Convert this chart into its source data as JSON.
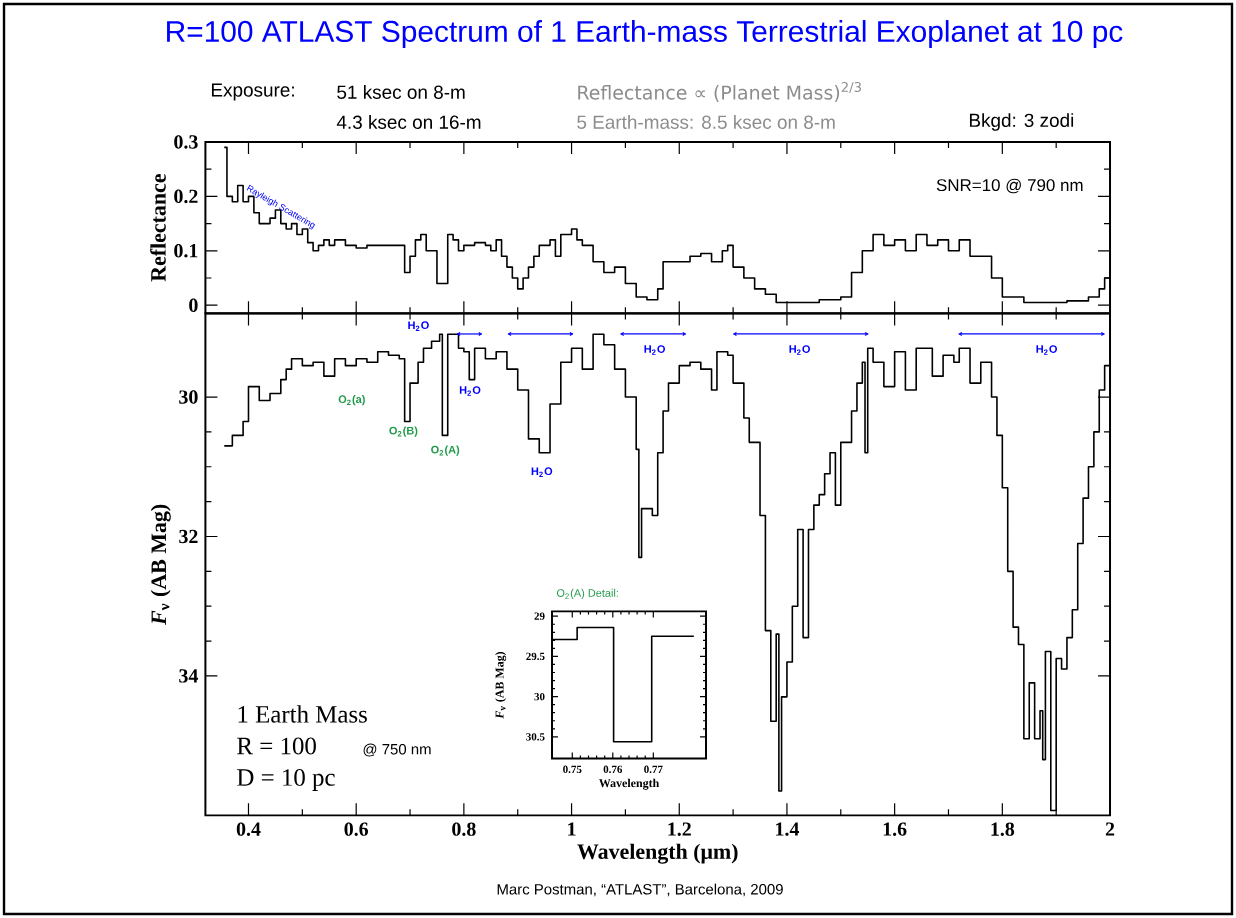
{
  "chart_data": [
    {
      "type": "step",
      "title": "R=100 ATLAST Spectrum of 1 Earth-mass Terrestrial Exoplanet at 10 pc",
      "ylabel": "Reflectance",
      "color": "#000000",
      "tick_labels": "y",
      "xlim": [
        0.32,
        2.0
      ],
      "xticks": [
        0.4,
        0.6,
        0.8,
        1,
        1.2,
        1.4,
        1.6,
        1.8,
        2
      ],
      "ylim": [
        -0.015,
        0.3
      ],
      "yticks": [
        0,
        0.1,
        0.2,
        0.3
      ],
      "x": [
        0.355,
        0.36,
        0.37,
        0.38,
        0.39,
        0.4,
        0.41,
        0.42,
        0.44,
        0.45,
        0.46,
        0.47,
        0.48,
        0.49,
        0.5,
        0.51,
        0.52,
        0.53,
        0.54,
        0.55,
        0.56,
        0.58,
        0.6,
        0.62,
        0.64,
        0.66,
        0.68,
        0.69,
        0.7,
        0.71,
        0.72,
        0.73,
        0.75,
        0.77,
        0.78,
        0.79,
        0.8,
        0.82,
        0.84,
        0.85,
        0.86,
        0.87,
        0.88,
        0.89,
        0.9,
        0.91,
        0.92,
        0.93,
        0.94,
        0.96,
        0.97,
        0.98,
        1.0,
        1.01,
        1.02,
        1.04,
        1.06,
        1.08,
        1.1,
        1.12,
        1.14,
        1.16,
        1.17,
        1.2,
        1.22,
        1.24,
        1.26,
        1.28,
        1.29,
        1.3,
        1.32,
        1.34,
        1.36,
        1.38,
        1.4,
        1.43,
        1.46,
        1.5,
        1.52,
        1.54,
        1.56,
        1.58,
        1.6,
        1.62,
        1.64,
        1.66,
        1.68,
        1.7,
        1.72,
        1.74,
        1.76,
        1.78,
        1.8,
        1.84,
        1.88,
        1.92,
        1.96,
        1.98,
        1.99,
        2.0
      ],
      "values": [
        0.29,
        0.2,
        0.19,
        0.22,
        0.19,
        0.2,
        0.17,
        0.15,
        0.16,
        0.175,
        0.15,
        0.14,
        0.15,
        0.13,
        0.14,
        0.115,
        0.1,
        0.11,
        0.12,
        0.11,
        0.12,
        0.11,
        0.105,
        0.11,
        0.11,
        0.11,
        0.11,
        0.06,
        0.09,
        0.12,
        0.13,
        0.1,
        0.04,
        0.13,
        0.12,
        0.1,
        0.11,
        0.115,
        0.11,
        0.1,
        0.12,
        0.09,
        0.07,
        0.05,
        0.03,
        0.05,
        0.07,
        0.09,
        0.11,
        0.12,
        0.09,
        0.13,
        0.14,
        0.12,
        0.11,
        0.08,
        0.06,
        0.07,
        0.04,
        0.015,
        0.01,
        0.03,
        0.08,
        0.08,
        0.09,
        0.095,
        0.08,
        0.1,
        0.11,
        0.07,
        0.05,
        0.03,
        0.02,
        0.005,
        0.005,
        0.005,
        0.01,
        0.015,
        0.06,
        0.1,
        0.13,
        0.11,
        0.12,
        0.1,
        0.13,
        0.11,
        0.12,
        0.1,
        0.12,
        0.09,
        0.09,
        0.05,
        0.015,
        0.005,
        0.005,
        0.008,
        0.015,
        0.03,
        0.05,
        0.05
      ],
      "annotations": [
        "Exposure:",
        "51 ksec on 8-m",
        "4.3 ksec on 16-m",
        "Reflectance ∝ (Planet Mass)$^{2/3}$",
        "5 Earth-mass: 8.5 ksec on 8-m",
        "Bkgd: 3 zodi",
        "SNR=10 @ 790 nm",
        {
          "text": "Rayleigh Scattering",
          "x": 0.46,
          "y": 0.18
        }
      ]
    },
    {
      "type": "step",
      "xlabel": "Wavelength (μm)",
      "ylabel": "*F*$_{ν}$ (AB Mag)",
      "color": "#000000",
      "xlim": [
        0.32,
        2.0
      ],
      "xticks": [
        0.4,
        0.6,
        0.8,
        1,
        1.2,
        1.4,
        1.6,
        1.8,
        2
      ],
      "ylim": [
        36,
        28.8
      ],
      "yticks": [
        30,
        32,
        34
      ],
      "x": [
        0.355,
        0.37,
        0.39,
        0.4,
        0.42,
        0.44,
        0.46,
        0.47,
        0.48,
        0.5,
        0.52,
        0.54,
        0.56,
        0.58,
        0.6,
        0.62,
        0.64,
        0.66,
        0.68,
        0.69,
        0.7,
        0.715,
        0.725,
        0.74,
        0.755,
        0.76,
        0.77,
        0.79,
        0.8,
        0.81,
        0.82,
        0.84,
        0.86,
        0.88,
        0.9,
        0.92,
        0.94,
        0.96,
        0.98,
        1.0,
        1.02,
        1.04,
        1.06,
        1.08,
        1.1,
        1.12,
        1.125,
        1.13,
        1.15,
        1.16,
        1.17,
        1.18,
        1.2,
        1.22,
        1.24,
        1.26,
        1.27,
        1.29,
        1.3,
        1.32,
        1.33,
        1.35,
        1.36,
        1.37,
        1.38,
        1.385,
        1.39,
        1.4,
        1.41,
        1.42,
        1.43,
        1.44,
        1.45,
        1.46,
        1.47,
        1.48,
        1.49,
        1.5,
        1.52,
        1.53,
        1.54,
        1.545,
        1.55,
        1.56,
        1.58,
        1.6,
        1.62,
        1.64,
        1.66,
        1.67,
        1.69,
        1.71,
        1.72,
        1.74,
        1.76,
        1.78,
        1.79,
        1.8,
        1.81,
        1.82,
        1.83,
        1.84,
        1.85,
        1.86,
        1.87,
        1.875,
        1.88,
        1.89,
        1.9,
        1.91,
        1.92,
        1.93,
        1.94,
        1.95,
        1.96,
        1.97,
        1.98,
        1.99,
        2.0
      ],
      "values": [
        30.7,
        30.55,
        30.35,
        29.85,
        30.05,
        29.95,
        29.75,
        29.6,
        29.45,
        29.55,
        29.5,
        29.7,
        29.45,
        29.55,
        29.45,
        29.5,
        29.35,
        29.4,
        29.45,
        30.35,
        29.8,
        29.5,
        29.3,
        29.2,
        29.1,
        30.55,
        29.1,
        29.3,
        29.35,
        29.75,
        29.3,
        29.45,
        29.35,
        29.6,
        29.9,
        30.6,
        30.8,
        30.1,
        29.5,
        29.3,
        29.6,
        29.1,
        29.25,
        29.6,
        30.0,
        30.75,
        32.3,
        31.6,
        31.7,
        30.8,
        30.2,
        29.8,
        29.55,
        29.5,
        29.6,
        29.9,
        29.35,
        29.4,
        29.8,
        30.3,
        30.65,
        31.7,
        33.35,
        34.65,
        33.4,
        35.65,
        34.3,
        33.8,
        33.0,
        31.9,
        33.45,
        31.9,
        31.55,
        31.4,
        31.1,
        30.8,
        31.55,
        30.65,
        30.2,
        29.8,
        29.5,
        30.8,
        29.3,
        29.5,
        29.85,
        29.35,
        29.9,
        29.3,
        29.3,
        29.7,
        29.4,
        29.5,
        29.3,
        29.8,
        29.5,
        30.0,
        30.55,
        31.3,
        32.5,
        33.3,
        33.55,
        34.9,
        34.1,
        34.9,
        34.5,
        35.2,
        33.65,
        35.93,
        33.75,
        33.9,
        33.45,
        33.05,
        32.1,
        31.45,
        31.0,
        30.5,
        29.9,
        29.55,
        29.55
      ],
      "annotations": [
        "H$_{2}$O",
        "H$_{2}$O",
        "H$_{2}$O",
        "O$_{2}$(a)",
        "O$_{2}$(B)",
        "O$_{2}$(A)",
        "1 Earth Mass",
        "R = 100",
        "@ 750 nm",
        "D = 10 pc",
        "Marc Postman, “ATLAST”, Barcelona, 2009",
        "H$_{2}$O",
        "H$_{2}$O",
        "H$_{2}$O"
      ]
    },
    {
      "type": "step",
      "title": "O$_{2}$(A) Detail:",
      "xlabel": "Wavelength",
      "ylabel": "*F*$_{ν}$ (AB Mag)",
      "color": "#000000",
      "xlim": [
        0.745,
        0.783
      ],
      "xticks": [
        0.75,
        0.76,
        0.77
      ],
      "ylim": [
        30.77,
        28.94
      ],
      "yticks": [
        29,
        29.5,
        30,
        30.5
      ],
      "x": [
        0.745,
        0.7512,
        0.7602,
        0.7696,
        0.78
      ],
      "values": [
        29.29,
        29.14,
        30.56,
        29.25,
        29.25
      ]
    }
  ]
}
